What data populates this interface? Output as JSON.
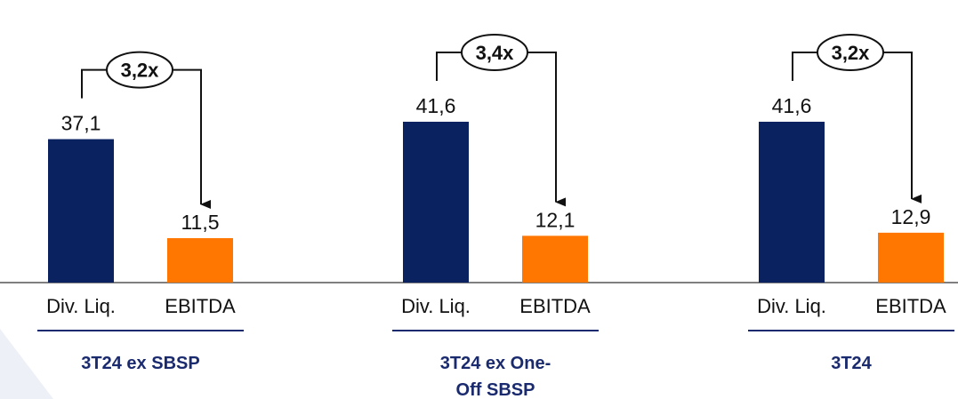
{
  "chart_data": {
    "type": "bar",
    "series_colors": [
      "#0b2260",
      "#ff7600"
    ],
    "groups": [
      {
        "title": "3T24 ex SBSP",
        "categories": [
          "Div. Liq.",
          "EBITDA"
        ],
        "values": [
          37.1,
          11.5
        ],
        "value_labels": [
          "37,1",
          "11,5"
        ],
        "multiple": "3,2x"
      },
      {
        "title_lines": [
          "3T24 ex One-",
          "Off SBSP"
        ],
        "categories": [
          "Div. Liq.",
          "EBITDA"
        ],
        "values": [
          41.6,
          12.1
        ],
        "value_labels": [
          "41,6",
          "12,1"
        ],
        "multiple": "3,4x"
      },
      {
        "title": "3T24",
        "categories": [
          "Div. Liq.",
          "EBITDA"
        ],
        "values": [
          41.6,
          12.9
        ],
        "value_labels": [
          "41,6",
          "12,9"
        ],
        "multiple": "3,2x"
      }
    ],
    "ylim": [
      0,
      44
    ]
  }
}
